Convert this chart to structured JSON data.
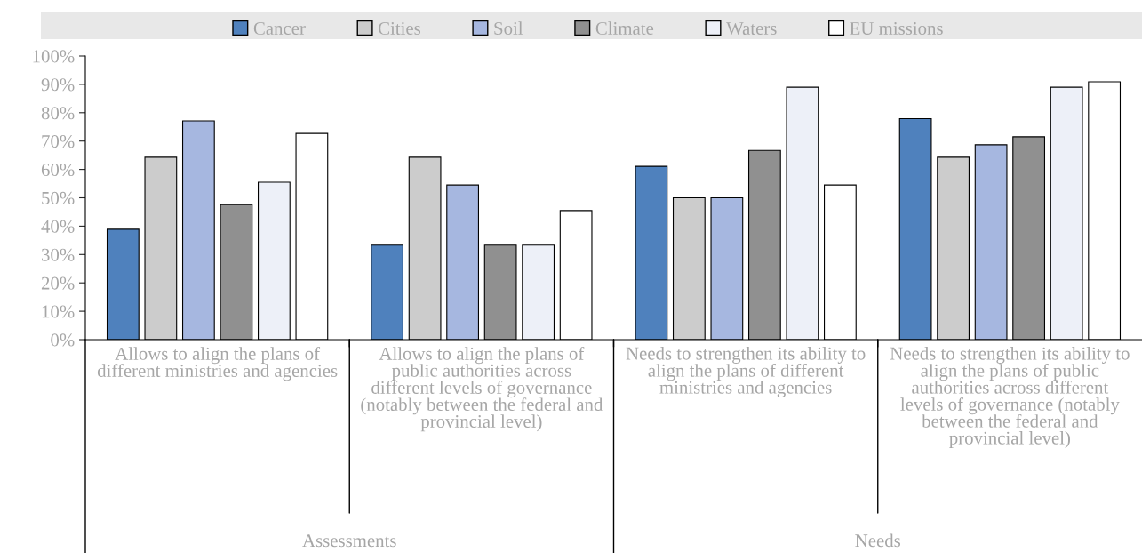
{
  "chart_data": {
    "type": "bar",
    "categories": [
      "Allows to align the plans of different ministries and agencies",
      "Allows to align the plans of public authorities across different levels of governance (notably between the federal and provincial level)",
      "Needs to strengthen its ability to align the plans of different ministries and agencies",
      "Needs to strengthen its ability to align the plans of public authorities across different levels of governance (notably between the federal and provincial level)"
    ],
    "series": [
      {
        "name": "Cancer",
        "color": "#4f81bd",
        "values": [
          38.9,
          33.3,
          61.1,
          77.9
        ]
      },
      {
        "name": "Cities",
        "color": "#cccccc",
        "values": [
          64.3,
          64.3,
          50,
          64.3
        ]
      },
      {
        "name": "Soil",
        "color": "#a6b7e0",
        "values": [
          77.1,
          54.5,
          50,
          68.7
        ]
      },
      {
        "name": "Climate",
        "color": "#909090",
        "values": [
          47.6,
          33.3,
          66.7,
          71.5
        ]
      },
      {
        "name": "Waters",
        "color": "#edf0f8",
        "values": [
          55.5,
          33.3,
          89,
          89
        ]
      },
      {
        "name": "EU missions",
        "color": "#ffffff",
        "values": [
          72.7,
          45.5,
          54.5,
          90.9
        ]
      }
    ],
    "annotations": [
      "Assessments",
      "Needs"
    ],
    "ylim": [
      0,
      100
    ],
    "yticks": [
      {
        "value": 0,
        "label": "0%"
      },
      {
        "value": 10,
        "label": "10%"
      },
      {
        "value": 20,
        "label": "20%"
      },
      {
        "value": 30,
        "label": "30%"
      },
      {
        "value": 40,
        "label": "40%"
      },
      {
        "value": 50,
        "label": "50%"
      },
      {
        "value": 60,
        "label": "60%"
      },
      {
        "value": 70,
        "label": "70%"
      },
      {
        "value": 80,
        "label": "80%"
      },
      {
        "value": 90,
        "label": "90%"
      },
      {
        "value": 100,
        "label": "100%"
      }
    ],
    "grid": false,
    "legend": "top"
  }
}
